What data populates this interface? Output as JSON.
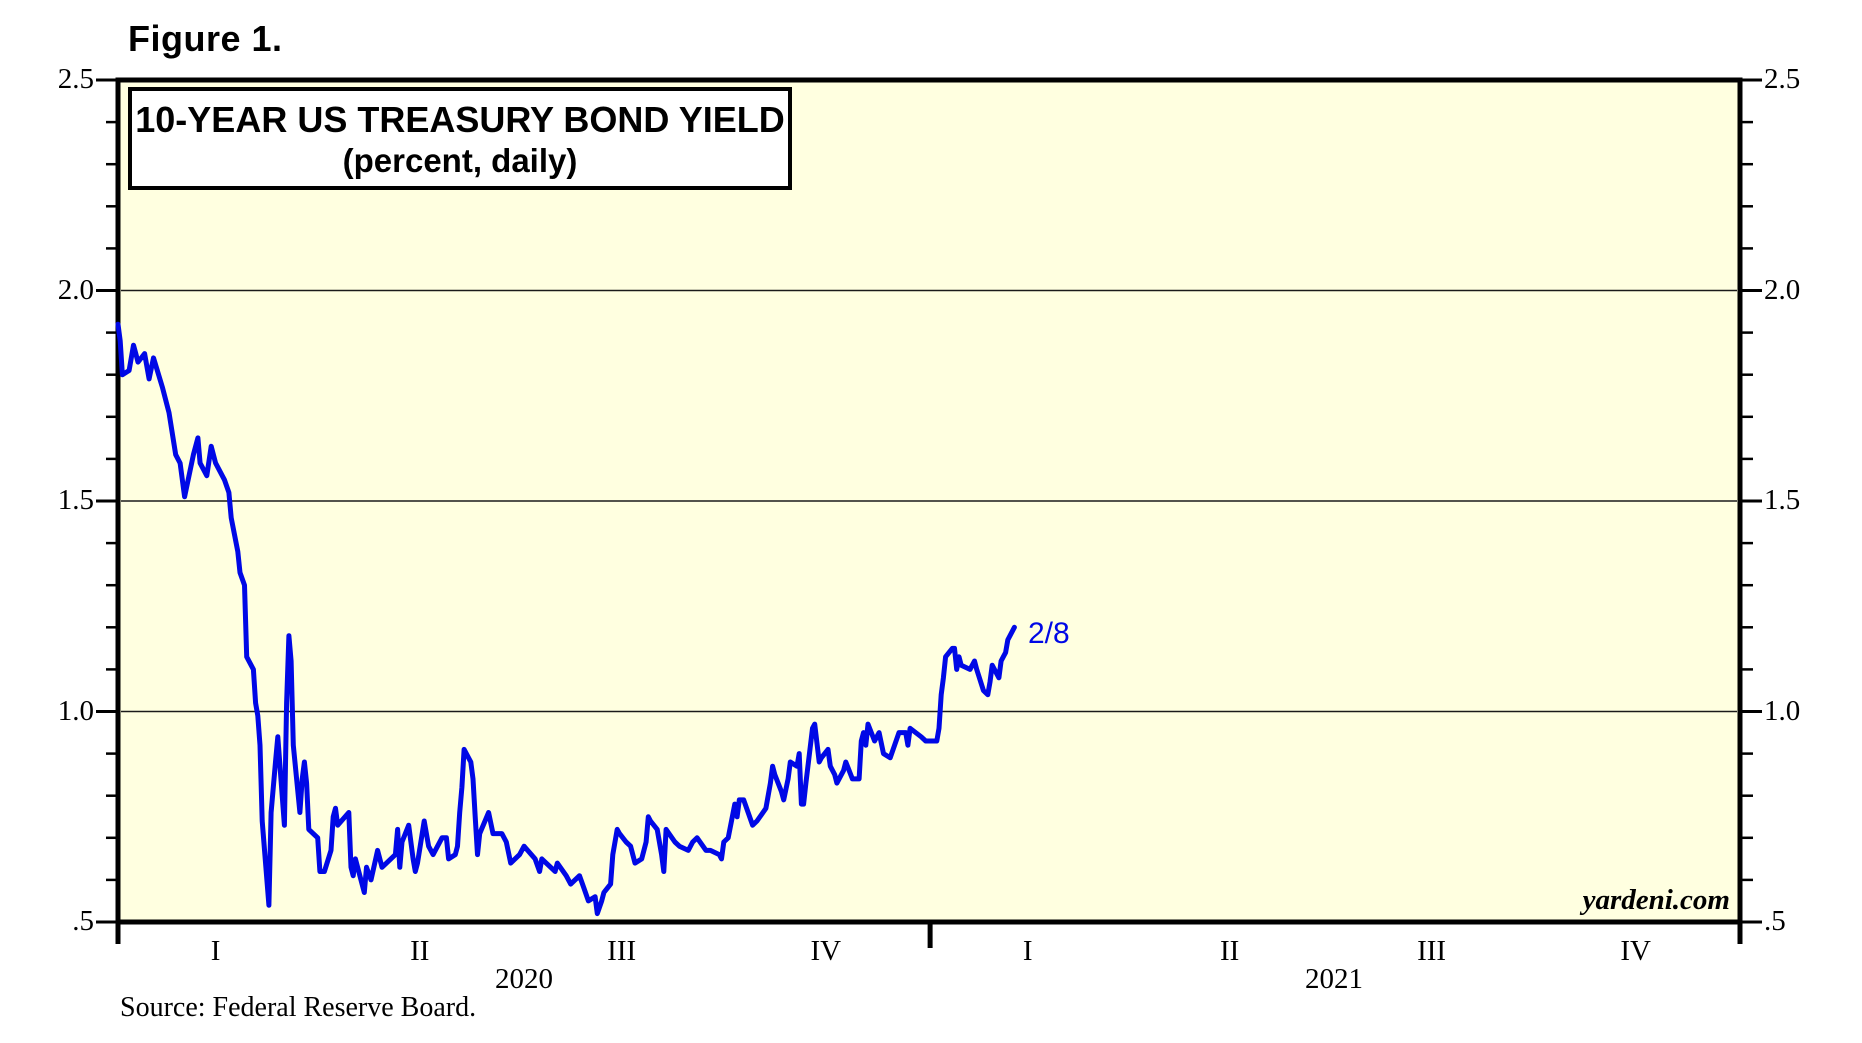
{
  "header": {
    "figure_label": "Figure 1."
  },
  "title_box": {
    "title": "10-YEAR US TREASURY BOND YIELD",
    "subtitle": "(percent, daily)"
  },
  "branding": {
    "watermark": "yardeni.com"
  },
  "footer": {
    "source": "Source: Federal Reserve Board."
  },
  "colors": {
    "line": "#0008E6",
    "plot_background": "#FFFFE0",
    "frame": "#000000",
    "gridline": "#1A1A1A",
    "text": "#000000",
    "annotation": "#0008E6"
  },
  "chart_data": {
    "type": "line",
    "title": "10-YEAR US TREASURY BOND YIELD",
    "subtitle": "(percent, daily)",
    "ylabel": "",
    "xlabel": "",
    "ylim": [
      0.5,
      2.5
    ],
    "grid": "horizontal-major-only",
    "grid_values": [
      2.0,
      1.5,
      1.0
    ],
    "y_ticks": [
      {
        "value": 2.5,
        "label": "2.5"
      },
      {
        "value": 2.0,
        "label": "2.0"
      },
      {
        "value": 1.5,
        "label": "1.5"
      },
      {
        "value": 1.0,
        "label": "1.0"
      },
      {
        "value": 0.5,
        "label": ".5"
      }
    ],
    "y_minor_tick_step": 0.1,
    "y_axis_sides": [
      "left",
      "right"
    ],
    "x_range": [
      "2020-01-01",
      "2022-01-01"
    ],
    "x_axis": {
      "quarters": [
        {
          "label": "I",
          "center_date": "2020-02-14"
        },
        {
          "label": "II",
          "center_date": "2020-05-16"
        },
        {
          "label": "III",
          "center_date": "2020-08-15"
        },
        {
          "label": "IV",
          "center_date": "2020-11-15"
        },
        {
          "label": "I",
          "center_date": "2021-02-14"
        },
        {
          "label": "II",
          "center_date": "2021-05-16"
        },
        {
          "label": "III",
          "center_date": "2021-08-15"
        },
        {
          "label": "IV",
          "center_date": "2021-11-15"
        }
      ],
      "years": [
        {
          "label": "2020",
          "center_date": "2020-07-02"
        },
        {
          "label": "2021",
          "center_date": "2021-07-02"
        }
      ],
      "year_boundary_ticks": [
        "2021-01-01"
      ]
    },
    "annotation": {
      "label": "2/8",
      "date": "2021-02-08",
      "value": 1.2
    },
    "legend": "none",
    "series": [
      {
        "name": "10-Year US Treasury Bond Yield (percent)",
        "points": [
          [
            "2020-01-01",
            1.92
          ],
          [
            "2020-01-02",
            1.88
          ],
          [
            "2020-01-03",
            1.8
          ],
          [
            "2020-01-06",
            1.81
          ],
          [
            "2020-01-08",
            1.87
          ],
          [
            "2020-01-09",
            1.85
          ],
          [
            "2020-01-10",
            1.83
          ],
          [
            "2020-01-13",
            1.85
          ],
          [
            "2020-01-15",
            1.79
          ],
          [
            "2020-01-17",
            1.84
          ],
          [
            "2020-01-21",
            1.77
          ],
          [
            "2020-01-23",
            1.73
          ],
          [
            "2020-01-24",
            1.71
          ],
          [
            "2020-01-27",
            1.61
          ],
          [
            "2020-01-29",
            1.59
          ],
          [
            "2020-01-31",
            1.51
          ],
          [
            "2020-02-04",
            1.61
          ],
          [
            "2020-02-06",
            1.65
          ],
          [
            "2020-02-07",
            1.59
          ],
          [
            "2020-02-10",
            1.56
          ],
          [
            "2020-02-12",
            1.63
          ],
          [
            "2020-02-14",
            1.59
          ],
          [
            "2020-02-18",
            1.55
          ],
          [
            "2020-02-20",
            1.52
          ],
          [
            "2020-02-21",
            1.46
          ],
          [
            "2020-02-24",
            1.38
          ],
          [
            "2020-02-25",
            1.33
          ],
          [
            "2020-02-27",
            1.3
          ],
          [
            "2020-02-28",
            1.13
          ],
          [
            "2020-03-02",
            1.1
          ],
          [
            "2020-03-03",
            1.02
          ],
          [
            "2020-03-04",
            0.99
          ],
          [
            "2020-03-05",
            0.92
          ],
          [
            "2020-03-06",
            0.74
          ],
          [
            "2020-03-09",
            0.54
          ],
          [
            "2020-03-10",
            0.76
          ],
          [
            "2020-03-11",
            0.82
          ],
          [
            "2020-03-12",
            0.88
          ],
          [
            "2020-03-13",
            0.94
          ],
          [
            "2020-03-16",
            0.73
          ],
          [
            "2020-03-17",
            1.02
          ],
          [
            "2020-03-18",
            1.18
          ],
          [
            "2020-03-19",
            1.12
          ],
          [
            "2020-03-20",
            0.92
          ],
          [
            "2020-03-23",
            0.76
          ],
          [
            "2020-03-24",
            0.84
          ],
          [
            "2020-03-25",
            0.88
          ],
          [
            "2020-03-26",
            0.83
          ],
          [
            "2020-03-27",
            0.72
          ],
          [
            "2020-03-31",
            0.7
          ],
          [
            "2020-04-01",
            0.62
          ],
          [
            "2020-04-03",
            0.62
          ],
          [
            "2020-04-06",
            0.67
          ],
          [
            "2020-04-07",
            0.75
          ],
          [
            "2020-04-08",
            0.77
          ],
          [
            "2020-04-09",
            0.73
          ],
          [
            "2020-04-14",
            0.76
          ],
          [
            "2020-04-15",
            0.63
          ],
          [
            "2020-04-16",
            0.61
          ],
          [
            "2020-04-17",
            0.65
          ],
          [
            "2020-04-21",
            0.57
          ],
          [
            "2020-04-22",
            0.63
          ],
          [
            "2020-04-24",
            0.6
          ],
          [
            "2020-04-27",
            0.67
          ],
          [
            "2020-04-29",
            0.63
          ],
          [
            "2020-05-01",
            0.64
          ],
          [
            "2020-05-05",
            0.66
          ],
          [
            "2020-05-06",
            0.72
          ],
          [
            "2020-05-07",
            0.63
          ],
          [
            "2020-05-08",
            0.69
          ],
          [
            "2020-05-11",
            0.73
          ],
          [
            "2020-05-13",
            0.65
          ],
          [
            "2020-05-14",
            0.62
          ],
          [
            "2020-05-15",
            0.64
          ],
          [
            "2020-05-18",
            0.74
          ],
          [
            "2020-05-20",
            0.68
          ],
          [
            "2020-05-22",
            0.66
          ],
          [
            "2020-05-26",
            0.7
          ],
          [
            "2020-05-28",
            0.7
          ],
          [
            "2020-05-29",
            0.65
          ],
          [
            "2020-06-01",
            0.66
          ],
          [
            "2020-06-02",
            0.68
          ],
          [
            "2020-06-03",
            0.76
          ],
          [
            "2020-06-04",
            0.82
          ],
          [
            "2020-06-05",
            0.91
          ],
          [
            "2020-06-08",
            0.88
          ],
          [
            "2020-06-09",
            0.84
          ],
          [
            "2020-06-10",
            0.75
          ],
          [
            "2020-06-11",
            0.66
          ],
          [
            "2020-06-12",
            0.71
          ],
          [
            "2020-06-16",
            0.76
          ],
          [
            "2020-06-18",
            0.71
          ],
          [
            "2020-06-22",
            0.71
          ],
          [
            "2020-06-24",
            0.69
          ],
          [
            "2020-06-26",
            0.64
          ],
          [
            "2020-06-30",
            0.66
          ],
          [
            "2020-07-02",
            0.68
          ],
          [
            "2020-07-07",
            0.65
          ],
          [
            "2020-07-09",
            0.62
          ],
          [
            "2020-07-10",
            0.65
          ],
          [
            "2020-07-14",
            0.63
          ],
          [
            "2020-07-16",
            0.62
          ],
          [
            "2020-07-17",
            0.64
          ],
          [
            "2020-07-21",
            0.61
          ],
          [
            "2020-07-23",
            0.59
          ],
          [
            "2020-07-27",
            0.61
          ],
          [
            "2020-07-29",
            0.58
          ],
          [
            "2020-07-31",
            0.55
          ],
          [
            "2020-08-03",
            0.56
          ],
          [
            "2020-08-04",
            0.52
          ],
          [
            "2020-08-06",
            0.55
          ],
          [
            "2020-08-07",
            0.57
          ],
          [
            "2020-08-10",
            0.59
          ],
          [
            "2020-08-11",
            0.66
          ],
          [
            "2020-08-12",
            0.69
          ],
          [
            "2020-08-13",
            0.72
          ],
          [
            "2020-08-14",
            0.71
          ],
          [
            "2020-08-17",
            0.69
          ],
          [
            "2020-08-19",
            0.68
          ],
          [
            "2020-08-21",
            0.64
          ],
          [
            "2020-08-24",
            0.65
          ],
          [
            "2020-08-26",
            0.69
          ],
          [
            "2020-08-27",
            0.75
          ],
          [
            "2020-08-28",
            0.74
          ],
          [
            "2020-08-31",
            0.72
          ],
          [
            "2020-09-02",
            0.66
          ],
          [
            "2020-09-03",
            0.62
          ],
          [
            "2020-09-04",
            0.72
          ],
          [
            "2020-09-08",
            0.69
          ],
          [
            "2020-09-10",
            0.68
          ],
          [
            "2020-09-14",
            0.67
          ],
          [
            "2020-09-16",
            0.69
          ],
          [
            "2020-09-18",
            0.7
          ],
          [
            "2020-09-22",
            0.67
          ],
          [
            "2020-09-24",
            0.67
          ],
          [
            "2020-09-28",
            0.66
          ],
          [
            "2020-09-29",
            0.65
          ],
          [
            "2020-09-30",
            0.69
          ],
          [
            "2020-10-02",
            0.7
          ],
          [
            "2020-10-05",
            0.78
          ],
          [
            "2020-10-06",
            0.75
          ],
          [
            "2020-10-07",
            0.79
          ],
          [
            "2020-10-09",
            0.79
          ],
          [
            "2020-10-13",
            0.73
          ],
          [
            "2020-10-15",
            0.74
          ],
          [
            "2020-10-19",
            0.77
          ],
          [
            "2020-10-21",
            0.83
          ],
          [
            "2020-10-22",
            0.87
          ],
          [
            "2020-10-23",
            0.85
          ],
          [
            "2020-10-26",
            0.81
          ],
          [
            "2020-10-27",
            0.79
          ],
          [
            "2020-10-29",
            0.84
          ],
          [
            "2020-10-30",
            0.88
          ],
          [
            "2020-11-02",
            0.87
          ],
          [
            "2020-11-03",
            0.9
          ],
          [
            "2020-11-04",
            0.78
          ],
          [
            "2020-11-05",
            0.78
          ],
          [
            "2020-11-06",
            0.83
          ],
          [
            "2020-11-09",
            0.96
          ],
          [
            "2020-11-10",
            0.97
          ],
          [
            "2020-11-12",
            0.88
          ],
          [
            "2020-11-13",
            0.89
          ],
          [
            "2020-11-16",
            0.91
          ],
          [
            "2020-11-17",
            0.87
          ],
          [
            "2020-11-19",
            0.85
          ],
          [
            "2020-11-20",
            0.83
          ],
          [
            "2020-11-23",
            0.86
          ],
          [
            "2020-11-24",
            0.88
          ],
          [
            "2020-11-27",
            0.84
          ],
          [
            "2020-11-30",
            0.84
          ],
          [
            "2020-12-01",
            0.93
          ],
          [
            "2020-12-02",
            0.95
          ],
          [
            "2020-12-03",
            0.92
          ],
          [
            "2020-12-04",
            0.97
          ],
          [
            "2020-12-07",
            0.93
          ],
          [
            "2020-12-09",
            0.95
          ],
          [
            "2020-12-11",
            0.9
          ],
          [
            "2020-12-14",
            0.89
          ],
          [
            "2020-12-16",
            0.92
          ],
          [
            "2020-12-18",
            0.95
          ],
          [
            "2020-12-21",
            0.95
          ],
          [
            "2020-12-22",
            0.92
          ],
          [
            "2020-12-23",
            0.96
          ],
          [
            "2020-12-28",
            0.94
          ],
          [
            "2020-12-30",
            0.93
          ],
          [
            "2020-12-31",
            0.93
          ],
          [
            "2021-01-04",
            0.93
          ],
          [
            "2021-01-05",
            0.96
          ],
          [
            "2021-01-06",
            1.04
          ],
          [
            "2021-01-07",
            1.08
          ],
          [
            "2021-01-08",
            1.13
          ],
          [
            "2021-01-11",
            1.15
          ],
          [
            "2021-01-12",
            1.15
          ],
          [
            "2021-01-13",
            1.1
          ],
          [
            "2021-01-14",
            1.13
          ],
          [
            "2021-01-15",
            1.11
          ],
          [
            "2021-01-19",
            1.1
          ],
          [
            "2021-01-21",
            1.12
          ],
          [
            "2021-01-22",
            1.1
          ],
          [
            "2021-01-25",
            1.05
          ],
          [
            "2021-01-27",
            1.04
          ],
          [
            "2021-01-28",
            1.07
          ],
          [
            "2021-01-29",
            1.11
          ],
          [
            "2021-02-01",
            1.08
          ],
          [
            "2021-02-02",
            1.12
          ],
          [
            "2021-02-03",
            1.13
          ],
          [
            "2021-02-04",
            1.14
          ],
          [
            "2021-02-05",
            1.17
          ],
          [
            "2021-02-08",
            1.2
          ]
        ]
      }
    ]
  }
}
